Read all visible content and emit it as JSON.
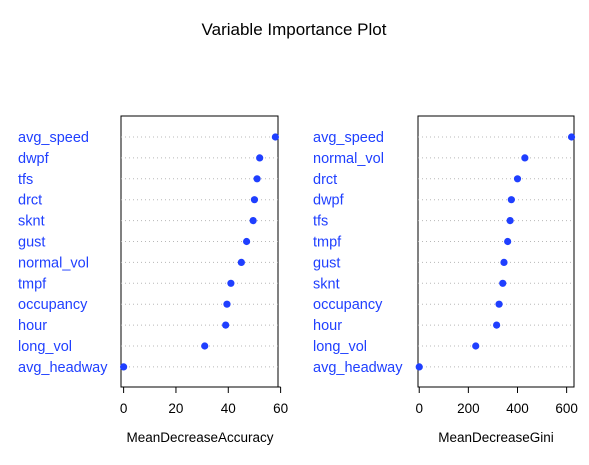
{
  "chart_data": {
    "title": "Variable Importance Plot",
    "type": "scatter",
    "colors": {
      "points": "#1f3fff",
      "labels": "#1f3fff",
      "guides": "#b8b8b8"
    },
    "panels": [
      {
        "xlabel": "MeanDecreaseAccuracy",
        "xlim": [
          -1,
          59
        ],
        "xticks": [
          0,
          20,
          40,
          60
        ],
        "categories": [
          "avg_speed",
          "dwpf",
          "tfs",
          "drct",
          "sknt",
          "gust",
          "normal_vol",
          "tmpf",
          "occupancy",
          "hour",
          "long_vol",
          "avg_headway"
        ],
        "values": [
          58,
          52,
          51,
          50,
          49.5,
          47,
          45,
          41,
          39.5,
          39,
          31,
          0
        ]
      },
      {
        "xlabel": "MeanDecreaseGini",
        "xlim": [
          -5,
          630
        ],
        "xticks": [
          0,
          200,
          400,
          600
        ],
        "categories": [
          "avg_speed",
          "normal_vol",
          "drct",
          "dwpf",
          "tfs",
          "tmpf",
          "gust",
          "sknt",
          "occupancy",
          "hour",
          "long_vol",
          "avg_headway"
        ],
        "values": [
          620,
          430,
          400,
          375,
          370,
          360,
          345,
          340,
          325,
          315,
          230,
          0
        ]
      }
    ]
  }
}
